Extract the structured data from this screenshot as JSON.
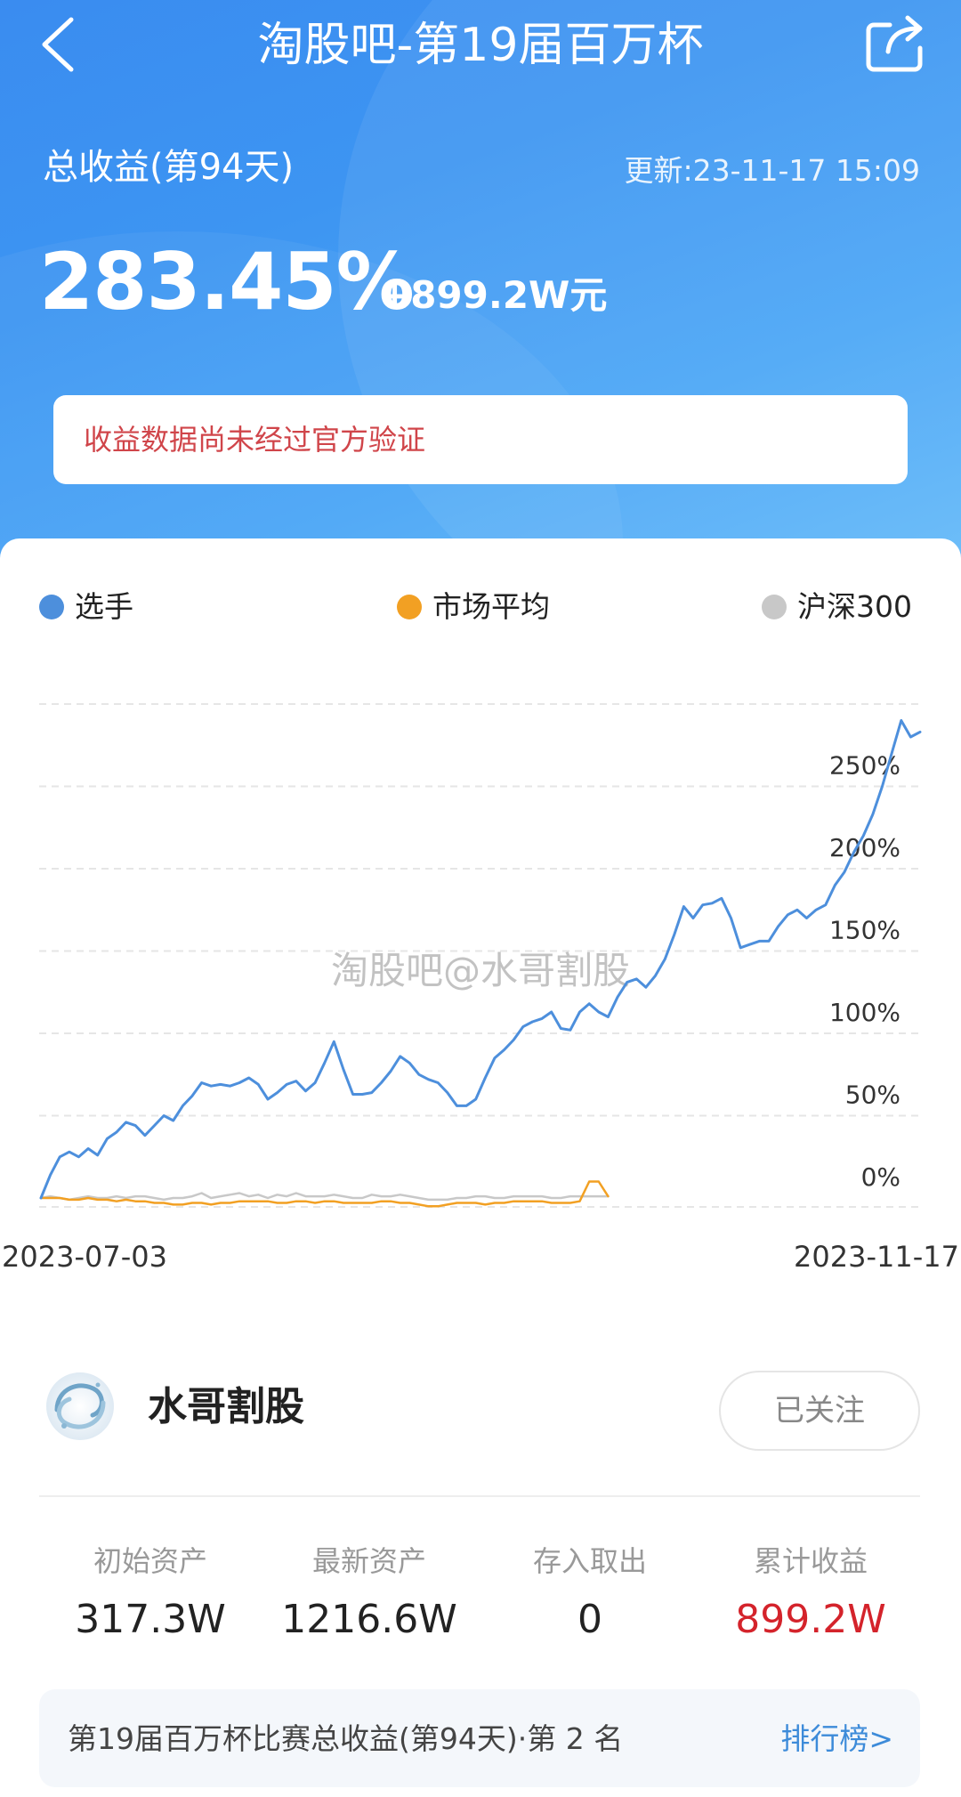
{
  "header": {
    "title": "淘股吧-第19届百万杯",
    "total_label": "总收益(第94天)",
    "update_time": "更新:23-11-17 15:09",
    "total_return_pct": "283.45%",
    "total_return_amount": "+899.2W元",
    "back_icon": "chevron-left-icon",
    "share_icon": "share-icon"
  },
  "notice": {
    "text": "收益数据尚未经过官方验证",
    "color": "#d0454a"
  },
  "chart_data": {
    "type": "line",
    "watermark": "淘股吧@水哥割股",
    "x_start": "2023-07-03",
    "x_end": "2023-11-17",
    "y_ticks": [
      "0%",
      "50%",
      "100%",
      "150%",
      "200%",
      "250%"
    ],
    "ylim": [
      0,
      300
    ],
    "grid": true,
    "legend_position": "top",
    "series": [
      {
        "name": "选手",
        "color": "#4d8fdc",
        "values": [
          0,
          14,
          25,
          28,
          25,
          30,
          26,
          36,
          40,
          46,
          44,
          38,
          44,
          50,
          47,
          56,
          62,
          70,
          68,
          69,
          68,
          70,
          73,
          69,
          60,
          64,
          69,
          71,
          65,
          70,
          82,
          95,
          78,
          63,
          63,
          64,
          70,
          77,
          86,
          82,
          75,
          72,
          70,
          64,
          56,
          56,
          60,
          73,
          85,
          90,
          96,
          104,
          107,
          109,
          113,
          103,
          102,
          113,
          118,
          113,
          110,
          122,
          131,
          133,
          128,
          135,
          145,
          160,
          177,
          170,
          178,
          179,
          182,
          170,
          152,
          154,
          156,
          156,
          165,
          172,
          175,
          170,
          175,
          178,
          190,
          198,
          210,
          220,
          233,
          250,
          270,
          290,
          280,
          283
        ]
      },
      {
        "name": "市场平均",
        "color": "#f2a023",
        "values": [
          0,
          0,
          0,
          -1,
          -1,
          0,
          -1,
          -1,
          -2,
          -1,
          -2,
          -2,
          -3,
          -3,
          -4,
          -4,
          -3,
          -3,
          -4,
          -3,
          -3,
          -2,
          -2,
          -2,
          -2,
          -3,
          -3,
          -2,
          -2,
          -3,
          -2,
          -2,
          -3,
          -3,
          -3,
          -3,
          -2,
          -2,
          -3,
          -3,
          -4,
          -5,
          -5,
          -4,
          -3,
          -3,
          -3,
          -4,
          -3,
          -3,
          -2,
          -2,
          -2,
          -2,
          -3,
          -3,
          -3,
          -2,
          10,
          10,
          1
        ]
      },
      {
        "name": "沪深300",
        "color": "#c8c8c8",
        "values": [
          0,
          1,
          0,
          -1,
          0,
          1,
          0,
          0,
          1,
          0,
          1,
          1,
          0,
          -1,
          0,
          0,
          1,
          3,
          0,
          1,
          2,
          3,
          1,
          2,
          0,
          2,
          1,
          3,
          1,
          1,
          1,
          2,
          1,
          0,
          0,
          2,
          1,
          1,
          2,
          1,
          0,
          -1,
          -1,
          -1,
          0,
          0,
          1,
          1,
          0,
          0,
          1,
          1,
          1,
          1,
          0,
          0,
          1,
          1,
          1,
          1,
          1
        ]
      }
    ]
  },
  "profile": {
    "avatar_icon": "water-swirl-avatar-icon",
    "name": "水哥割股",
    "follow_label": "已关注",
    "stats": [
      {
        "label": "初始资产",
        "value": "317.3W"
      },
      {
        "label": "最新资产",
        "value": "1216.6W"
      },
      {
        "label": "存入取出",
        "value": "0"
      },
      {
        "label": "累计收益",
        "value": "899.2W"
      }
    ],
    "highlight_color": "#d4232b",
    "rank_text": "第19届百万杯比赛总收益(第94天)·第 2 名",
    "rank_link": "排行榜>"
  }
}
